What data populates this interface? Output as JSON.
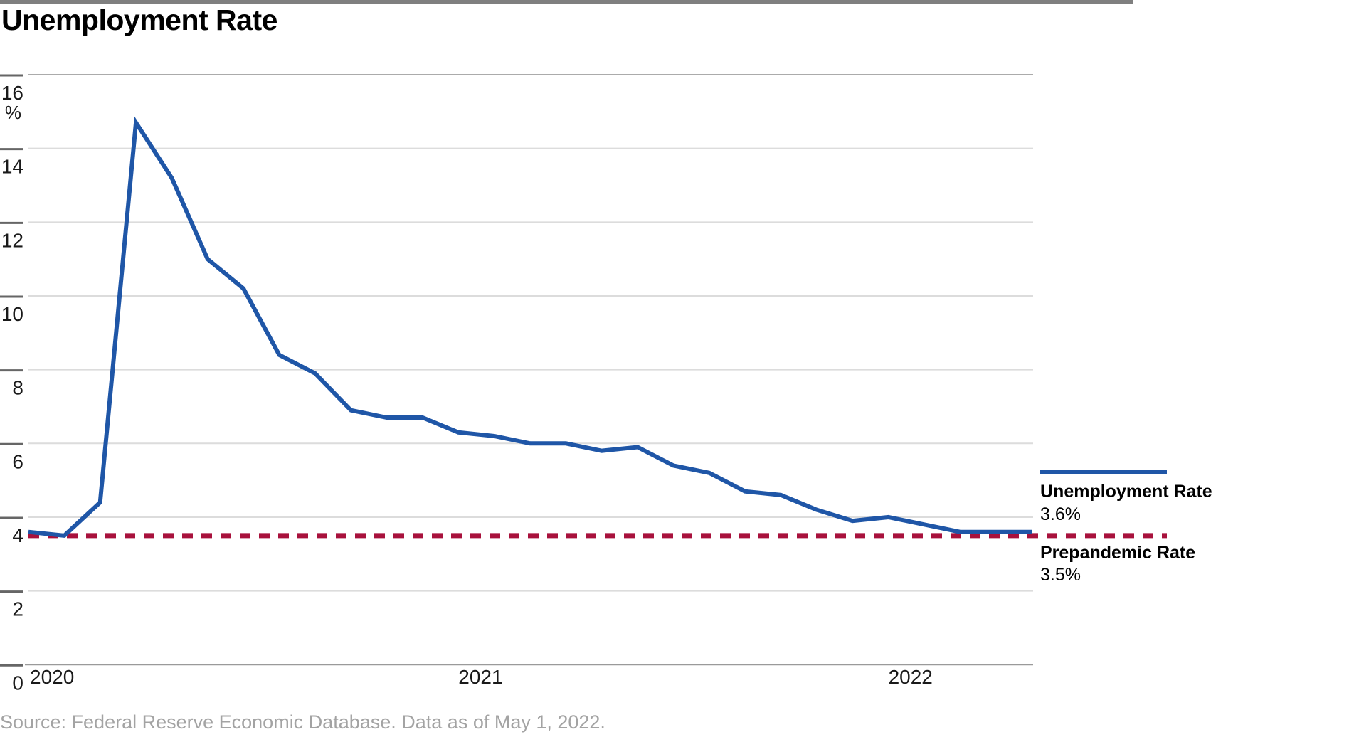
{
  "title": "Unemployment Rate",
  "source_note": "Source: Federal Reserve Economic Database. Data as of May 1, 2022.",
  "legend": {
    "series1_label": "Unemployment Rate",
    "series1_value": "3.6%",
    "series2_label": "Prepandemic Rate",
    "series2_value": "3.5%"
  },
  "colors": {
    "line": "#1f56a7",
    "benchmark": "#a8113c",
    "grid_light": "#dcdcdc",
    "grid_top": "#ababab",
    "axis_bottom": "#9a9a9a",
    "tick": "#666666",
    "axis_text": "#1a1a1a",
    "source_text": "#a3a3a3",
    "topbar": "#7f7f7f"
  },
  "chart_data": {
    "type": "line",
    "title": "Unemployment Rate",
    "y_unit": "%",
    "ylim": [
      0,
      16
    ],
    "yticks": [
      16,
      14,
      12,
      10,
      8,
      6,
      4,
      2,
      0
    ],
    "x_year_labels": [
      "2020",
      "2021",
      "2022"
    ],
    "x": [
      "Jan 2020",
      "Feb 2020",
      "Mar 2020",
      "Apr 2020",
      "May 2020",
      "Jun 2020",
      "Jul 2020",
      "Aug 2020",
      "Sep 2020",
      "Oct 2020",
      "Nov 2020",
      "Dec 2020",
      "Jan 2021",
      "Feb 2021",
      "Mar 2021",
      "Apr 2021",
      "May 2021",
      "Jun 2021",
      "Jul 2021",
      "Aug 2021",
      "Sep 2021",
      "Oct 2021",
      "Nov 2021",
      "Dec 2021",
      "Jan 2022",
      "Feb 2022",
      "Mar 2022",
      "Apr 2022"
    ],
    "series": [
      {
        "name": "Unemployment Rate",
        "style": "solid",
        "current_value": 3.6,
        "values": [
          3.6,
          3.5,
          4.4,
          14.7,
          13.2,
          11.0,
          10.2,
          8.4,
          7.9,
          6.9,
          6.7,
          6.7,
          6.3,
          6.2,
          6.0,
          6.0,
          5.8,
          5.9,
          5.4,
          5.2,
          4.7,
          4.6,
          4.2,
          3.9,
          4.0,
          3.8,
          3.6,
          3.6
        ]
      },
      {
        "name": "Prepandemic Rate",
        "style": "dotted",
        "constant_value": 3.5
      }
    ],
    "grid": "horizontal-only",
    "legend_position": "right"
  }
}
